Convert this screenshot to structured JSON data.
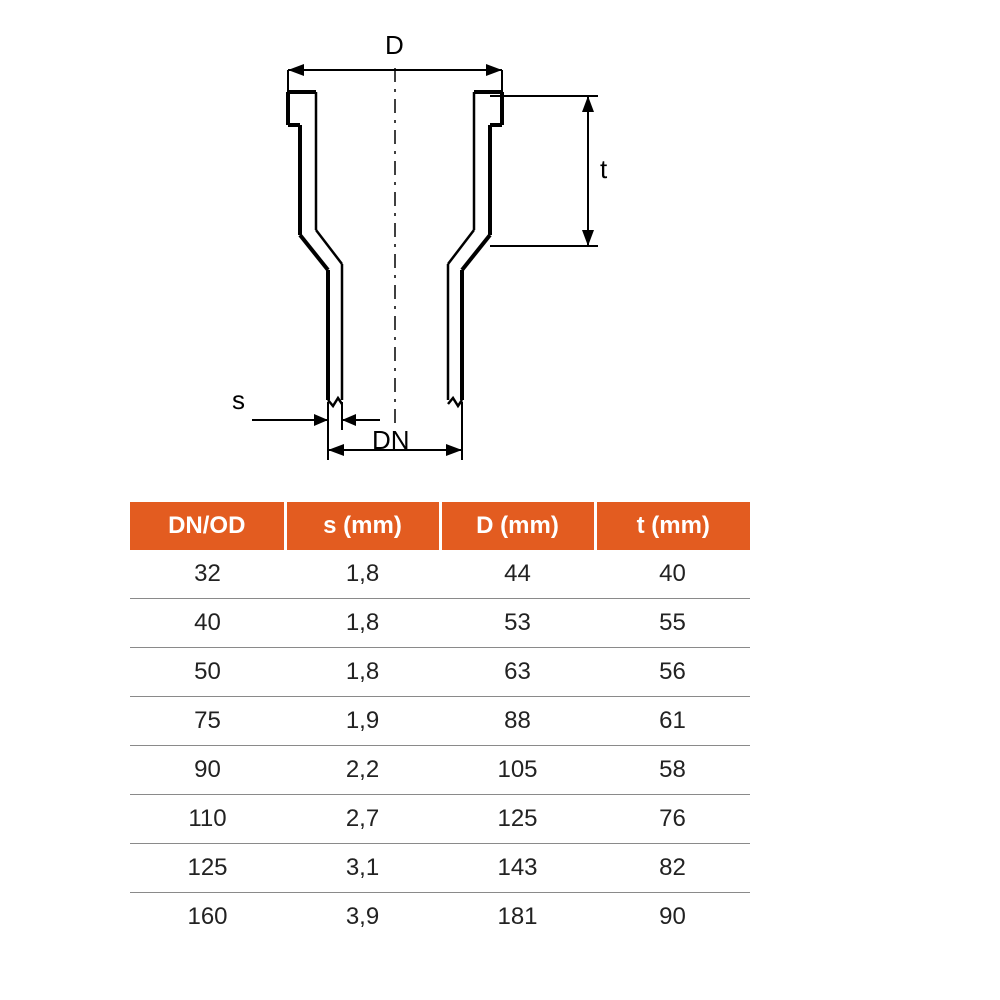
{
  "diagram": {
    "labels": {
      "D": "D",
      "t": "t",
      "s": "s",
      "DN": "DN"
    },
    "stroke_color": "#000000",
    "stroke_width_main": 4,
    "stroke_width_dim": 2,
    "centerline_dash": "10 8 3 8",
    "label_fontsize": 26
  },
  "table": {
    "type": "table",
    "header_bg": "#e35c20",
    "header_text_color": "#ffffff",
    "header_fontsize": 24,
    "cell_fontsize": 24,
    "row_border_color": "#8a8a8a",
    "background_color": "#ffffff",
    "columns": [
      "DN/OD",
      "s (mm)",
      "D (mm)",
      "t (mm)"
    ],
    "rows": [
      [
        "32",
        "1,8",
        "44",
        "40"
      ],
      [
        "40",
        "1,8",
        "53",
        "55"
      ],
      [
        "50",
        "1,8",
        "63",
        "56"
      ],
      [
        "75",
        "1,9",
        "88",
        "61"
      ],
      [
        "90",
        "2,2",
        "105",
        "58"
      ],
      [
        "110",
        "2,7",
        "125",
        "76"
      ],
      [
        "125",
        "3,1",
        "143",
        "82"
      ],
      [
        "160",
        "3,9",
        "181",
        "90"
      ]
    ]
  }
}
